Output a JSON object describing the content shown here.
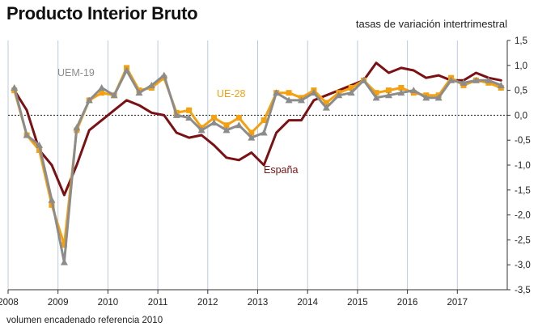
{
  "title": "Producto Interior Bruto",
  "subtitle": "tasas de variación intertrimestral",
  "footnote": "volumen encadenado referencia 2010",
  "chart_data": {
    "type": "line",
    "x_ticks": [
      "2008",
      "2009",
      "2010",
      "2011",
      "2012",
      "2013",
      "2014",
      "2015",
      "2016",
      "2017"
    ],
    "y_ticks": [
      "1,5",
      "1,0",
      "0,5",
      "0,0",
      "-0,5",
      "-1,0",
      "-1,5",
      "-2,0",
      "-2,5",
      "-3,0",
      "-3,5"
    ],
    "ylim": [
      -3.5,
      1.5
    ],
    "x_start": "2008-Q1",
    "grid": "vertical-year-lines",
    "zero_line": "dotted",
    "series": [
      {
        "name": "España",
        "color": "#7b1113",
        "marker": "none",
        "values": [
          0.5,
          0.1,
          -0.7,
          -1.0,
          -1.6,
          -1.0,
          -0.3,
          -0.1,
          0.1,
          0.3,
          0.2,
          0.05,
          0.0,
          -0.35,
          -0.45,
          -0.4,
          -0.6,
          -0.85,
          -0.9,
          -0.75,
          -1.0,
          -0.35,
          -0.1,
          -0.1,
          0.3,
          0.4,
          0.5,
          0.6,
          0.7,
          1.05,
          0.85,
          0.95,
          0.9,
          0.75,
          0.8,
          0.7,
          0.7,
          0.85,
          0.75,
          0.7
        ]
      },
      {
        "name": "UE-28",
        "color": "#f5a00e",
        "marker": "square",
        "values": [
          0.5,
          -0.4,
          -0.7,
          -1.8,
          -2.6,
          -0.3,
          0.3,
          0.45,
          0.4,
          0.95,
          0.5,
          0.55,
          0.75,
          0.05,
          0.1,
          -0.25,
          -0.05,
          -0.2,
          -0.05,
          -0.35,
          -0.1,
          0.45,
          0.45,
          0.35,
          0.5,
          0.25,
          0.45,
          0.55,
          0.7,
          0.45,
          0.5,
          0.55,
          0.45,
          0.4,
          0.4,
          0.75,
          0.6,
          0.7,
          0.65,
          0.55
        ]
      },
      {
        "name": "UEM-19",
        "color": "#8c8c8c",
        "marker": "triangle",
        "values": [
          0.55,
          -0.4,
          -0.6,
          -1.7,
          -2.95,
          -0.25,
          0.3,
          0.55,
          0.4,
          0.9,
          0.45,
          0.6,
          0.8,
          0.0,
          -0.05,
          -0.3,
          -0.15,
          -0.3,
          -0.2,
          -0.45,
          -0.35,
          0.45,
          0.3,
          0.3,
          0.45,
          0.15,
          0.4,
          0.45,
          0.7,
          0.35,
          0.4,
          0.45,
          0.5,
          0.35,
          0.35,
          0.7,
          0.65,
          0.7,
          0.7,
          0.6
        ]
      }
    ]
  }
}
